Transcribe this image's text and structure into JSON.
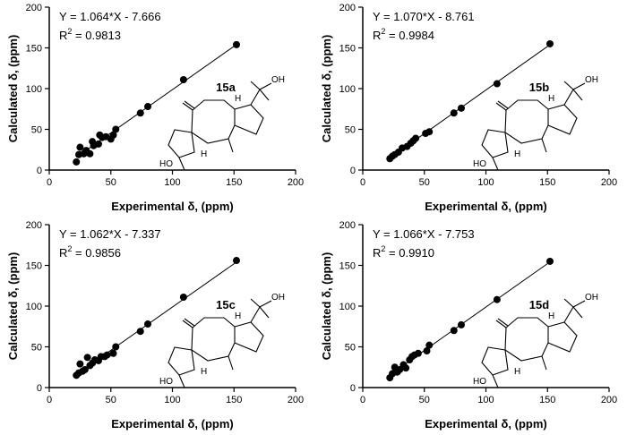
{
  "chart_data": [
    {
      "type": "scatter",
      "compound": "15a",
      "equation": "Y = 1.064*X - 7.666",
      "r2_label": "R",
      "r2_sup": "2",
      "r2_value": " = 0.9813",
      "xlabel": "Experimental δ, (ppm)",
      "ylabel": "Calculated δ, (ppm)",
      "xlim": [
        0,
        200
      ],
      "ylim": [
        0,
        200
      ],
      "xticks": [
        "0",
        "50",
        "100",
        "150",
        "200"
      ],
      "yticks": [
        "0",
        "50",
        "100",
        "150",
        "200"
      ],
      "fit": {
        "slope": 1.064,
        "intercept": -7.666,
        "x_range": [
          22,
          152
        ]
      },
      "x": [
        22,
        24,
        25,
        28,
        30,
        33,
        35,
        36,
        40,
        41,
        43,
        46,
        50,
        52,
        54,
        74,
        80,
        109,
        152
      ],
      "y": [
        10,
        19,
        28,
        20,
        24,
        20,
        35,
        30,
        32,
        43,
        40,
        41,
        38,
        43,
        50,
        70,
        78,
        111,
        154
      ],
      "labels": {
        "oh_top": "OH",
        "h_left": "H",
        "h_bottom": "H",
        "ho": "HO"
      }
    },
    {
      "type": "scatter",
      "compound": "15b",
      "equation": "Y = 1.070*X - 8.761",
      "r2_label": "R",
      "r2_sup": "2",
      "r2_value": " = 0.9984",
      "xlabel": "Experimental δ, (ppm)",
      "ylabel": "Calculated δ, (ppm)",
      "xlim": [
        0,
        200
      ],
      "ylim": [
        0,
        200
      ],
      "xticks": [
        "0",
        "50",
        "100",
        "150",
        "200"
      ],
      "yticks": [
        "0",
        "50",
        "100",
        "150",
        "200"
      ],
      "fit": {
        "slope": 1.07,
        "intercept": -8.761,
        "x_range": [
          22,
          152
        ]
      },
      "x": [
        22,
        24,
        26,
        29,
        32,
        36,
        39,
        41,
        43,
        51,
        54,
        74,
        80,
        109,
        152
      ],
      "y": [
        14,
        17,
        19,
        22,
        27,
        29,
        33,
        36,
        39,
        45,
        47,
        70,
        76,
        106,
        155
      ],
      "labels": {
        "oh_top": "OH",
        "h_left": "H",
        "h_bottom": "H",
        "ho": "HO"
      }
    },
    {
      "type": "scatter",
      "compound": "15c",
      "equation": "Y = 1.062*X - 7.337",
      "r2_label": "R",
      "r2_sup": "2",
      "r2_value": " = 0.9856",
      "xlabel": "Experimental δ, (ppm)",
      "ylabel": "Calculated δ, (ppm)",
      "xlim": [
        0,
        200
      ],
      "ylim": [
        0,
        200
      ],
      "xticks": [
        "0",
        "50",
        "100",
        "150",
        "200"
      ],
      "yticks": [
        "0",
        "50",
        "100",
        "150",
        "200"
      ],
      "fit": {
        "slope": 1.062,
        "intercept": -7.337,
        "x_range": [
          22,
          152
        ]
      },
      "x": [
        22,
        24,
        25,
        27,
        29,
        31,
        33,
        35,
        37,
        40,
        42,
        45,
        47,
        52,
        54,
        74,
        80,
        109,
        152
      ],
      "y": [
        15,
        18,
        29,
        20,
        22,
        37,
        27,
        30,
        34,
        33,
        38,
        38,
        40,
        42,
        50,
        69,
        78,
        111,
        156
      ],
      "labels": {
        "oh_top": "OH",
        "h_left": "H",
        "h_bottom": "H",
        "ho": "HO"
      }
    },
    {
      "type": "scatter",
      "compound": "15d",
      "equation": "Y = 1.066*X - 7.753",
      "r2_label": "R",
      "r2_sup": "2",
      "r2_value": " = 0.9910",
      "xlabel": "Experimental δ, (ppm)",
      "ylabel": "Calculated δ, (ppm)",
      "xlim": [
        0,
        200
      ],
      "ylim": [
        0,
        200
      ],
      "xticks": [
        "0",
        "50",
        "100",
        "150",
        "200"
      ],
      "yticks": [
        "0",
        "50",
        "100",
        "150",
        "200"
      ],
      "fit": {
        "slope": 1.066,
        "intercept": -7.753,
        "x_range": [
          22,
          152
        ]
      },
      "x": [
        22,
        24,
        26,
        28,
        30,
        33,
        35,
        38,
        40,
        42,
        45,
        52,
        54,
        74,
        80,
        109,
        152
      ],
      "y": [
        12,
        17,
        25,
        19,
        22,
        28,
        24,
        34,
        38,
        40,
        42,
        45,
        52,
        70,
        77,
        108,
        155
      ],
      "labels": {
        "oh_top": "OH",
        "h_left": "H",
        "h_bottom": "H",
        "ho": "HO"
      }
    }
  ]
}
